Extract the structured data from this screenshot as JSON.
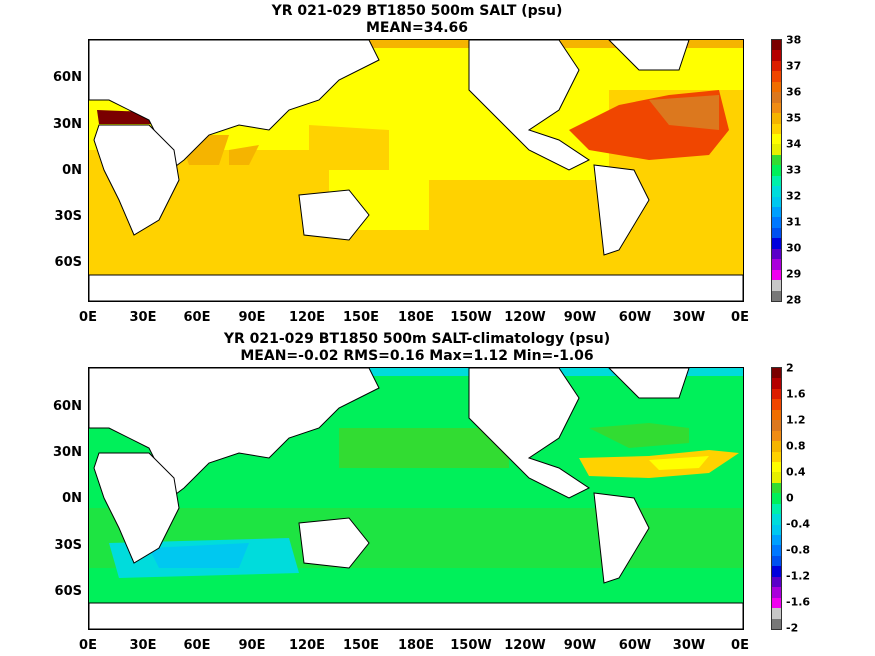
{
  "panels": [
    {
      "title": "YR 021-029 BT1850 500m SALT (psu)",
      "subtitle": "MEAN=34.66",
      "lat_labels": [
        "60N",
        "30N",
        "0N",
        "30S",
        "60S"
      ],
      "lon_labels": [
        "0E",
        "30E",
        "60E",
        "90E",
        "120E",
        "150E",
        "180E",
        "150W",
        "120W",
        "90W",
        "60W",
        "30W",
        "0E"
      ],
      "colorbar": {
        "labels": [
          "38",
          "37",
          "36",
          "35",
          "34",
          "33",
          "32",
          "31",
          "30",
          "29",
          "28"
        ],
        "colors": [
          "#7a0000",
          "#b40000",
          "#dc1e00",
          "#f04600",
          "#f06e00",
          "#dc781e",
          "#f08c14",
          "#f5b400",
          "#ffd200",
          "#ffff00",
          "#e6f000",
          "#32dc32",
          "#00f05a",
          "#00f0aa",
          "#00dcdc",
          "#00c8f0",
          "#00a0ff",
          "#0078ff",
          "#0050f0",
          "#0000dc",
          "#5a00c8",
          "#aa00dc",
          "#f000f0",
          "#c8c8c8",
          "#787878"
        ]
      }
    },
    {
      "title": "YR 021-029 BT1850 500m SALT-climatology (psu)",
      "subtitle": "MEAN=-0.02   RMS=0.16   Max=1.12   Min=-1.06",
      "lat_labels": [
        "60N",
        "30N",
        "0N",
        "30S",
        "60S"
      ],
      "lon_labels": [
        "0E",
        "30E",
        "60E",
        "90E",
        "120E",
        "150E",
        "180E",
        "150W",
        "120W",
        "90W",
        "60W",
        "30W",
        "0E"
      ],
      "colorbar": {
        "labels": [
          "2",
          "1.6",
          "1.2",
          "0.8",
          "0.4",
          "0",
          "-0.4",
          "-0.8",
          "-1.2",
          "-1.6",
          "-2"
        ],
        "colors": [
          "#7a0000",
          "#b40000",
          "#dc1e00",
          "#f04600",
          "#f06e00",
          "#dc781e",
          "#f08c14",
          "#f5b400",
          "#ffd200",
          "#ffff00",
          "#e6f000",
          "#32dc32",
          "#00f05a",
          "#00f0aa",
          "#00dcdc",
          "#00c8f0",
          "#00a0ff",
          "#0078ff",
          "#0050f0",
          "#0000dc",
          "#5a00c8",
          "#aa00dc",
          "#f000f0",
          "#c8c8c8",
          "#787878"
        ]
      }
    }
  ]
}
